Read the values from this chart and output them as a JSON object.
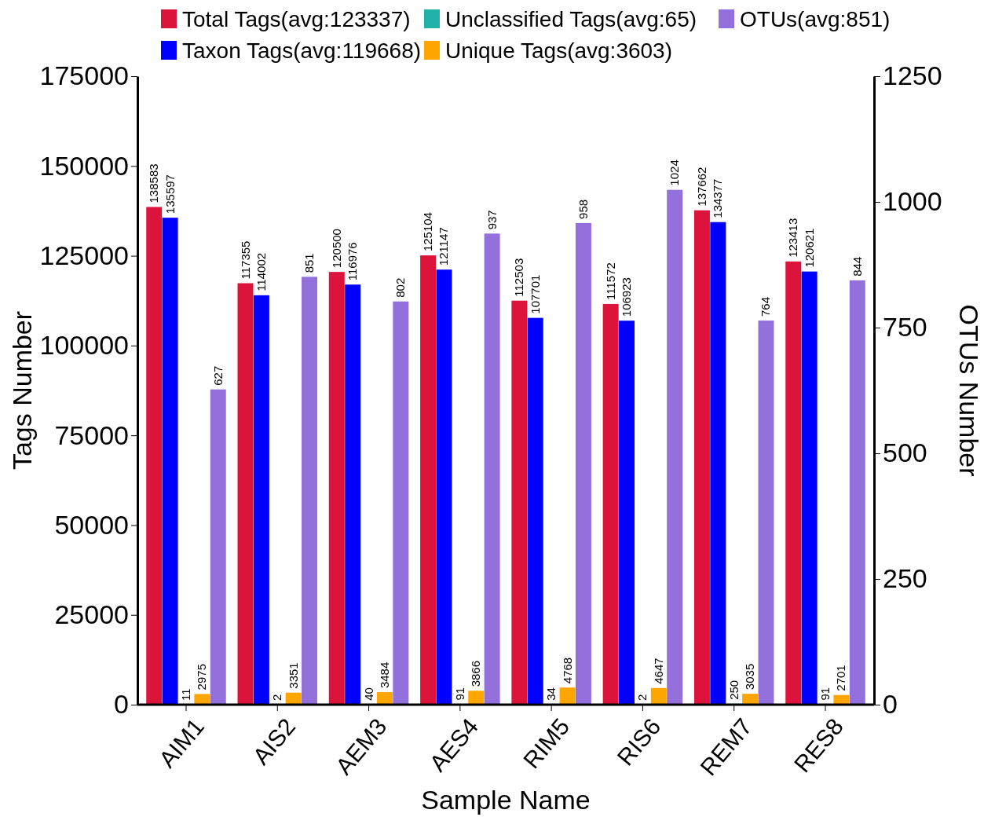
{
  "chart_data": {
    "type": "bar",
    "xlabel": "Sample Name",
    "ylabel": "Tags Number",
    "y2label": "OTUs Number",
    "categories": [
      "AIM1",
      "AIS2",
      "AEM3",
      "AES4",
      "RIM5",
      "RIS6",
      "REM7",
      "RES8"
    ],
    "series": [
      {
        "name": "Total Tags(avg:123337)",
        "color": "#dc143c",
        "values": [
          138583,
          117355,
          120500,
          125104,
          112503,
          111572,
          137662,
          123413
        ]
      },
      {
        "name": "Taxon Tags(avg:119668)",
        "color": "#0000ff",
        "values": [
          135597,
          114002,
          116976,
          121147,
          107701,
          106923,
          134377,
          120621
        ]
      },
      {
        "name": "Unclassified Tags(avg:65)",
        "color": "#20b2aa",
        "values": [
          11,
          2,
          40,
          91,
          34,
          2,
          250,
          91
        ]
      },
      {
        "name": "Unique Tags(avg:3603)",
        "color": "#ffa500",
        "values": [
          2975,
          3351,
          3484,
          3866,
          4768,
          4647,
          3035,
          2701
        ]
      },
      {
        "name": "OTUs(avg:851)",
        "color": "#9370db",
        "axis": "y2",
        "values": [
          627,
          851,
          802,
          937,
          958,
          1024,
          764,
          844
        ]
      }
    ],
    "ylim": [
      0,
      175000
    ],
    "yticks": [
      0,
      25000,
      50000,
      75000,
      100000,
      125000,
      150000,
      175000
    ],
    "y2lim": [
      0,
      1250
    ],
    "y2ticks": [
      0,
      250,
      500,
      750,
      1000,
      1250
    ],
    "data_labels": true,
    "legend": "top",
    "grid": false
  }
}
